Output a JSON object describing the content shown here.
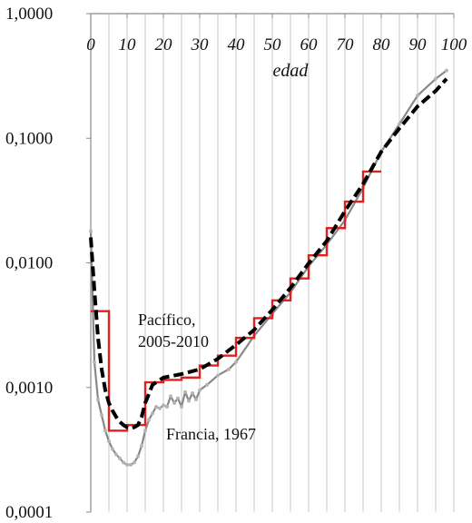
{
  "chart_data": {
    "type": "line",
    "title": "",
    "xlabel": "edad",
    "ylabel": "",
    "x_range": [
      0,
      100
    ],
    "y_range": [
      0.0001,
      1
    ],
    "y_scale": "log",
    "grid": true,
    "x_ticks": [
      "0",
      "10",
      "20",
      "30",
      "40",
      "50",
      "60",
      "70",
      "80",
      "90",
      "100"
    ],
    "y_ticks": [
      "0,0001",
      "0,0010",
      "0,0100",
      "0,1000",
      "1,0000"
    ],
    "annotations": [
      {
        "label": "Pacífico,",
        "series": "pacifico"
      },
      {
        "label": "2005-2010",
        "series": "pacifico"
      },
      {
        "label": "Francia, 1967",
        "series": "francia"
      }
    ],
    "series": [
      {
        "id": "model",
        "style": "dashed-black",
        "color": "#000000",
        "x": [
          0,
          1,
          2,
          3,
          4,
          5,
          6,
          7,
          8,
          9,
          10,
          11,
          12,
          13,
          14,
          15,
          17,
          20,
          25,
          30,
          35,
          40,
          45,
          50,
          55,
          60,
          65,
          70,
          75,
          80,
          85,
          90,
          95,
          98
        ],
        "y": [
          0.016,
          0.006,
          0.0025,
          0.0014,
          0.00095,
          0.00075,
          0.00065,
          0.00058,
          0.00053,
          0.0005,
          0.00048,
          0.00047,
          0.00048,
          0.0005,
          0.00058,
          0.00075,
          0.00105,
          0.0012,
          0.00128,
          0.0014,
          0.0017,
          0.0022,
          0.0029,
          0.0042,
          0.0063,
          0.0099,
          0.015,
          0.026,
          0.043,
          0.078,
          0.12,
          0.18,
          0.24,
          0.3
        ]
      },
      {
        "id": "francia",
        "style": "solid-gray",
        "color": "#888888",
        "x": [
          0,
          1,
          2,
          3,
          4,
          5,
          6,
          7,
          8,
          9,
          10,
          11,
          12,
          13,
          14,
          15,
          16,
          17,
          18,
          19,
          20,
          21,
          22,
          23,
          24,
          25,
          26,
          27,
          28,
          29,
          30,
          32,
          35,
          38,
          40,
          45,
          50,
          55,
          60,
          65,
          70,
          75,
          80,
          85,
          90,
          95,
          98
        ],
        "y": [
          0.018,
          0.0016,
          0.0008,
          0.0006,
          0.00045,
          0.00037,
          0.00032,
          0.00029,
          0.00027,
          0.00025,
          0.00024,
          0.00024,
          0.00025,
          0.00028,
          0.00034,
          0.00045,
          0.00055,
          0.00062,
          0.0007,
          0.00068,
          0.00072,
          0.0007,
          0.00085,
          0.00075,
          0.00082,
          0.0007,
          0.00092,
          0.00078,
          0.0009,
          0.0008,
          0.00095,
          0.00105,
          0.00125,
          0.0014,
          0.0016,
          0.0026,
          0.0039,
          0.0058,
          0.0094,
          0.014,
          0.022,
          0.04,
          0.078,
          0.13,
          0.22,
          0.3,
          0.35
        ]
      },
      {
        "id": "pacifico",
        "style": "step-red",
        "color": "#e0201f",
        "steps": [
          {
            "x0": 0,
            "x1": 5,
            "y": 0.0041
          },
          {
            "x0": 5,
            "x1": 10,
            "y": 0.00045
          },
          {
            "x0": 10,
            "x1": 15,
            "y": 0.0005
          },
          {
            "x0": 15,
            "x1": 20,
            "y": 0.0011
          },
          {
            "x0": 20,
            "x1": 25,
            "y": 0.00115
          },
          {
            "x0": 25,
            "x1": 30,
            "y": 0.0012
          },
          {
            "x0": 30,
            "x1": 35,
            "y": 0.0015
          },
          {
            "x0": 35,
            "x1": 40,
            "y": 0.0018
          },
          {
            "x0": 40,
            "x1": 45,
            "y": 0.0025
          },
          {
            "x0": 45,
            "x1": 50,
            "y": 0.0036
          },
          {
            "x0": 50,
            "x1": 55,
            "y": 0.005
          },
          {
            "x0": 55,
            "x1": 60,
            "y": 0.0075
          },
          {
            "x0": 60,
            "x1": 65,
            "y": 0.0115
          },
          {
            "x0": 65,
            "x1": 70,
            "y": 0.019
          },
          {
            "x0": 70,
            "x1": 75,
            "y": 0.031
          },
          {
            "x0": 75,
            "x1": 80,
            "y": 0.054
          }
        ]
      }
    ]
  }
}
